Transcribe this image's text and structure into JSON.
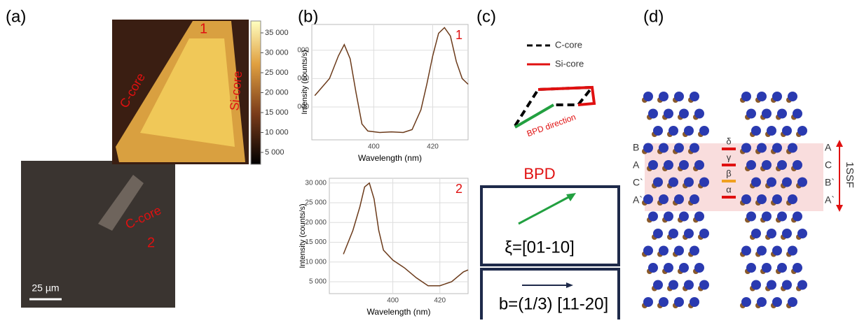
{
  "panel_a": {
    "label": "(a)",
    "site_1": "1",
    "c_core_top": "C-core",
    "si_core": "Si-core",
    "c_core_bottom": "C-core",
    "site_2": "2",
    "colorbar_ticks": [
      "35 000",
      "30 000",
      "25 000",
      "20 000",
      "15 000",
      "10 000",
      "5 000"
    ],
    "scale_bar": "25 µm"
  },
  "panel_b": {
    "label": "(b)",
    "charts": [
      {
        "type": "line",
        "annotation": "1",
        "x_label": "Wavelength (nm)",
        "y_label": "Intensity (counts/s)",
        "color": "#6b3a1a",
        "grid": true,
        "x": [
          380,
          385,
          388,
          390,
          392,
          394,
          396,
          398,
          402,
          406,
          410,
          413,
          416,
          418,
          420,
          422,
          424,
          426,
          428,
          430,
          432
        ],
        "values": [
          14000,
          20000,
          28000,
          32000,
          27000,
          15000,
          4000,
          1500,
          1000,
          1200,
          1000,
          2000,
          9000,
          18000,
          28000,
          36000,
          38000,
          35000,
          26000,
          20000,
          18000
        ],
        "xlim": [
          379,
          432
        ],
        "ylim": [
          -1600,
          39100
        ],
        "xticks": [
          400,
          420
        ],
        "yticks": [
          {
            "value": 30000,
            "label": "000"
          },
          {
            "value": 20000,
            "label": "000"
          },
          {
            "value": 10000,
            "label": "000"
          }
        ]
      },
      {
        "type": "line",
        "annotation": "2",
        "x_label": "Wavelength (nm)",
        "y_label": "Intensity (counts/s)",
        "color": "#6b3a1a",
        "grid": true,
        "x": [
          379,
          383,
          386,
          388,
          390,
          392,
          394,
          396,
          400,
          405,
          410,
          415,
          420,
          425,
          430,
          432
        ],
        "values": [
          12000,
          18000,
          24000,
          29000,
          30000,
          26000,
          18000,
          13000,
          10500,
          8500,
          6000,
          4000,
          4000,
          5000,
          7500,
          8000
        ],
        "xlim": [
          373,
          432
        ],
        "ylim": [
          2000,
          31200
        ],
        "xticks": [
          400,
          420
        ],
        "yticks": [
          {
            "value": 30000,
            "label": "30 000"
          },
          {
            "value": 25000,
            "label": "25 000"
          },
          {
            "value": 20000,
            "label": "20 000"
          },
          {
            "value": 15000,
            "label": "15 000"
          },
          {
            "value": 10000,
            "label": "10 000"
          },
          {
            "value": 5000,
            "label": "5 000"
          }
        ]
      }
    ]
  },
  "panel_c": {
    "label": "(c)",
    "legend_c_core": "C-core",
    "legend_si_core": "Si-core",
    "bpd_direction": "BPD direction",
    "title": "BPD",
    "line_direction": "ξ=[01-10]",
    "burgers_vector": "b=(1/3) [11-20]"
  },
  "panel_d": {
    "label": "(d)",
    "left_layers": [
      "B",
      "A",
      "C`",
      "A`"
    ],
    "right_layers": [
      "A",
      "C",
      "B`",
      "A`"
    ],
    "partials": [
      "δ",
      "γ",
      "β",
      "α"
    ],
    "fault": "1SSF"
  }
}
